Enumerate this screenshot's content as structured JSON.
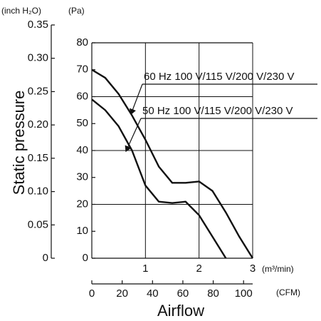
{
  "chart_data": {
    "type": "line",
    "y_label": "Static pressure",
    "x_label": "Airflow",
    "y_unit": "(Pa)",
    "y2_unit": "(inch H₂O)",
    "x_unit": "(m³/min)",
    "x2_unit": "(CFM)",
    "x": [
      0,
      0.25,
      0.5,
      0.75,
      1,
      1.25,
      1.5,
      1.75,
      2,
      2.25,
      2.5,
      2.75,
      3
    ],
    "series": [
      {
        "name": "60 Hz 100 V/115 V/200 V/230 V",
        "color": "#111111",
        "values": [
          70,
          67,
          61,
          53,
          44,
          34,
          28,
          28,
          28.5,
          25,
          17,
          8,
          0
        ]
      },
      {
        "name": "50 Hz 100 V/115 V/200 V/230 V",
        "color": "#111111",
        "values": [
          59,
          55,
          49,
          40,
          27,
          21,
          20.5,
          21,
          16,
          8,
          0,
          null,
          null
        ]
      }
    ],
    "xlim": [
      0,
      3
    ],
    "xticks": [
      1,
      2,
      3
    ],
    "ylim": [
      0,
      80
    ],
    "yticks": [
      0,
      10,
      20,
      30,
      40,
      50,
      60,
      70,
      80
    ],
    "y2lim": [
      0,
      0.35
    ],
    "y2ticks": [
      0,
      0.05,
      {
        "value": 0.1,
        "label": "0.10"
      },
      0.15,
      {
        "value": 0.2,
        "label": "0.20"
      },
      0.25,
      {
        "value": 0.3,
        "label": "0.30"
      },
      0.35
    ],
    "x2lim": [
      0,
      106
    ],
    "x2ticks": [
      0,
      20,
      40,
      60,
      80,
      100
    ],
    "grid_y": [
      20,
      40,
      60,
      80
    ],
    "grid": true
  }
}
